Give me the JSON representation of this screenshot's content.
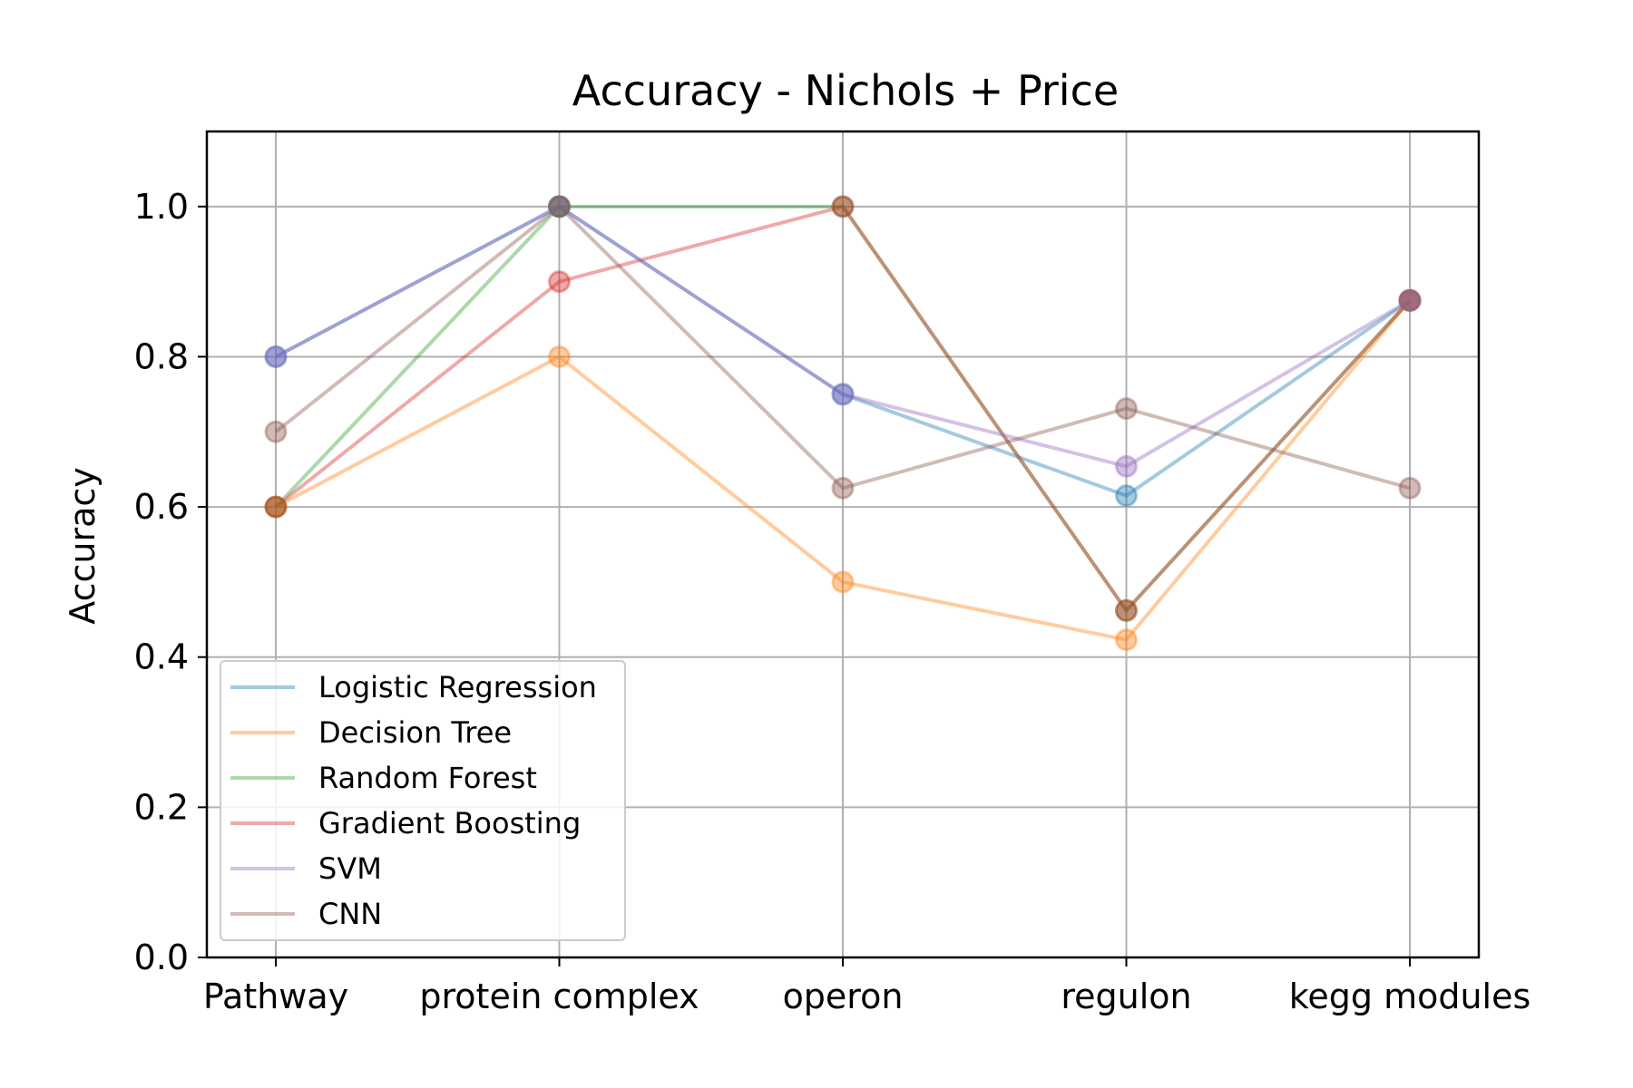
{
  "chart_data": {
    "type": "line",
    "title": "Accuracy - Nichols + Price",
    "xlabel": "",
    "ylabel": "Accuracy",
    "categories": [
      "Pathway",
      "protein complex",
      "operon",
      "regulon",
      "kegg modules"
    ],
    "ylim": [
      0.0,
      1.1
    ],
    "yticks": [
      0.0,
      0.2,
      0.4,
      0.6,
      0.8,
      1.0
    ],
    "ytick_labels": [
      "0.0",
      "0.2",
      "0.4",
      "0.6",
      "0.8",
      "1.0"
    ],
    "grid": true,
    "legend_position": "lower-left",
    "series": [
      {
        "name": "Logistic Regression",
        "color": "#1f77b4",
        "values": [
          0.8,
          1.0,
          0.75,
          0.615,
          0.875
        ]
      },
      {
        "name": "Decision Tree",
        "color": "#ff7f0e",
        "values": [
          0.6,
          0.8,
          0.5,
          0.423,
          0.875
        ]
      },
      {
        "name": "Random Forest",
        "color": "#2ca02c",
        "values": [
          0.6,
          1.0,
          1.0,
          0.462,
          0.875
        ]
      },
      {
        "name": "Gradient Boosting",
        "color": "#d62728",
        "values": [
          0.6,
          0.9,
          1.0,
          0.462,
          0.875
        ]
      },
      {
        "name": "SVM",
        "color": "#9467bd",
        "values": [
          0.8,
          1.0,
          0.75,
          0.654,
          0.875
        ]
      },
      {
        "name": "CNN",
        "color": "#8c564b",
        "values": [
          0.7,
          1.0,
          0.625,
          0.731,
          0.625
        ]
      }
    ]
  }
}
